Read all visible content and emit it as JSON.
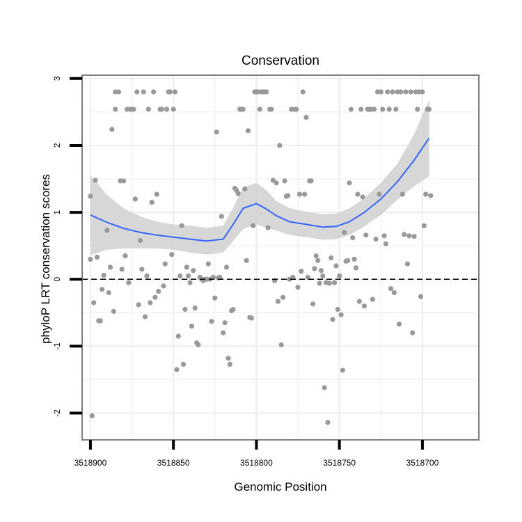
{
  "chart_data": {
    "type": "scatter",
    "title": "Conservation",
    "xlabel": "Genomic Position",
    "ylabel": "phyloP LRT conservation scores",
    "x_reversed": true,
    "xlim": [
      3518905,
      3518666
    ],
    "ylim": [
      -2.4,
      3.05
    ],
    "x_ticks": [
      3518900,
      3518850,
      3518800,
      3518750,
      3518700
    ],
    "x_tick_labels": [
      "3518900",
      "3518850",
      "3518800",
      "3518750",
      "3518700"
    ],
    "y_ticks": [
      -2,
      -1,
      0,
      1,
      2,
      3
    ],
    "y_tick_labels": [
      "-2",
      "-1",
      "0",
      "1",
      "2",
      "3"
    ],
    "reference_line": {
      "y": 0,
      "style": "dashed"
    },
    "grid": true,
    "colors": {
      "points": "#999999",
      "smooth_line": "#3366FF",
      "confidence_band": "#d3d3d3",
      "panel_border": "#7f7f7f",
      "grid": "#ececec"
    },
    "points": [
      {
        "x": 3518900,
        "y": 1.24
      },
      {
        "x": 3518900,
        "y": 0.3
      },
      {
        "x": 3518899,
        "y": -2.04
      },
      {
        "x": 3518898,
        "y": -0.35
      },
      {
        "x": 3518897,
        "y": 1.48
      },
      {
        "x": 3518896,
        "y": 0.33
      },
      {
        "x": 3518895,
        "y": -0.62
      },
      {
        "x": 3518894,
        "y": -0.62
      },
      {
        "x": 3518893,
        "y": -0.15
      },
      {
        "x": 3518892,
        "y": 0.06
      },
      {
        "x": 3518890,
        "y": 0.73
      },
      {
        "x": 3518889,
        "y": -0.2
      },
      {
        "x": 3518888,
        "y": 0.18
      },
      {
        "x": 3518887,
        "y": 2.24
      },
      {
        "x": 3518886,
        "y": -0.48
      },
      {
        "x": 3518885,
        "y": 2.8
      },
      {
        "x": 3518885,
        "y": 2.54
      },
      {
        "x": 3518883,
        "y": 2.8
      },
      {
        "x": 3518882,
        "y": 1.47
      },
      {
        "x": 3518881,
        "y": 0.15
      },
      {
        "x": 3518880,
        "y": 1.47
      },
      {
        "x": 3518879,
        "y": 0.35
      },
      {
        "x": 3518878,
        "y": 2.54
      },
      {
        "x": 3518877,
        "y": -0.05
      },
      {
        "x": 3518876,
        "y": 2.54
      },
      {
        "x": 3518875,
        "y": 2.54
      },
      {
        "x": 3518874,
        "y": 2.54
      },
      {
        "x": 3518873,
        "y": 1.2
      },
      {
        "x": 3518872,
        "y": 2.8
      },
      {
        "x": 3518871,
        "y": -0.38
      },
      {
        "x": 3518870,
        "y": 0.58
      },
      {
        "x": 3518869,
        "y": 0.15
      },
      {
        "x": 3518868,
        "y": 2.8
      },
      {
        "x": 3518867,
        "y": -0.56
      },
      {
        "x": 3518866,
        "y": 0.05
      },
      {
        "x": 3518865,
        "y": 2.54
      },
      {
        "x": 3518864,
        "y": -0.35
      },
      {
        "x": 3518863,
        "y": 1.15
      },
      {
        "x": 3518862,
        "y": 2.8
      },
      {
        "x": 3518861,
        "y": -0.27
      },
      {
        "x": 3518860,
        "y": 1.27
      },
      {
        "x": 3518859,
        "y": -0.18
      },
      {
        "x": 3518858,
        "y": 2.54
      },
      {
        "x": 3518857,
        "y": 2.54
      },
      {
        "x": 3518856,
        "y": -0.1
      },
      {
        "x": 3518855,
        "y": 0.23
      },
      {
        "x": 3518854,
        "y": 2.54
      },
      {
        "x": 3518853,
        "y": 2.8
      },
      {
        "x": 3518852,
        "y": 2.8
      },
      {
        "x": 3518851,
        "y": 0.37
      },
      {
        "x": 3518850,
        "y": 2.54
      },
      {
        "x": 3518849,
        "y": 2.8
      },
      {
        "x": 3518848,
        "y": -1.35
      },
      {
        "x": 3518847,
        "y": -0.85
      },
      {
        "x": 3518846,
        "y": 0.05
      },
      {
        "x": 3518845,
        "y": 0.8
      },
      {
        "x": 3518844,
        "y": -1.27
      },
      {
        "x": 3518843,
        "y": -0.45
      },
      {
        "x": 3518842,
        "y": 0.18
      },
      {
        "x": 3518841,
        "y": 0.05
      },
      {
        "x": 3518840,
        "y": -0.05
      },
      {
        "x": 3518839,
        "y": -0.7
      },
      {
        "x": 3518838,
        "y": 0.13
      },
      {
        "x": 3518837,
        "y": -0.43
      },
      {
        "x": 3518836,
        "y": -0.95
      },
      {
        "x": 3518835,
        "y": -0.98
      },
      {
        "x": 3518834,
        "y": 0.03
      },
      {
        "x": 3518833,
        "y": 0.0
      },
      {
        "x": 3518832,
        "y": -0.02
      },
      {
        "x": 3518831,
        "y": 0.0
      },
      {
        "x": 3518830,
        "y": 0.0
      },
      {
        "x": 3518829,
        "y": 0.23
      },
      {
        "x": 3518828,
        "y": 0.0
      },
      {
        "x": 3518827,
        "y": -0.63
      },
      {
        "x": 3518826,
        "y": 0.03
      },
      {
        "x": 3518825,
        "y": -0.28
      },
      {
        "x": 3518824,
        "y": 2.2
      },
      {
        "x": 3518823,
        "y": 0.02
      },
      {
        "x": 3518822,
        "y": 0.03
      },
      {
        "x": 3518821,
        "y": 0.94
      },
      {
        "x": 3518820,
        "y": -0.8
      },
      {
        "x": 3518819,
        "y": -0.65
      },
      {
        "x": 3518818,
        "y": 0.18
      },
      {
        "x": 3518817,
        "y": -1.18
      },
      {
        "x": 3518816,
        "y": -1.27
      },
      {
        "x": 3518815,
        "y": -0.47
      },
      {
        "x": 3518814,
        "y": -0.45
      },
      {
        "x": 3518813,
        "y": 1.36
      },
      {
        "x": 3518812,
        "y": 1.33
      },
      {
        "x": 3518811,
        "y": 1.28
      },
      {
        "x": 3518810,
        "y": 2.54
      },
      {
        "x": 3518809,
        "y": 2.54
      },
      {
        "x": 3518808,
        "y": 2.54
      },
      {
        "x": 3518807,
        "y": 1.35
      },
      {
        "x": 3518806,
        "y": 0.28
      },
      {
        "x": 3518805,
        "y": 2.22
      },
      {
        "x": 3518804,
        "y": -0.57
      },
      {
        "x": 3518803,
        "y": -0.58
      },
      {
        "x": 3518802,
        "y": 0.8
      },
      {
        "x": 3518801,
        "y": 2.8
      },
      {
        "x": 3518800,
        "y": 2.8
      },
      {
        "x": 3518799,
        "y": 2.8
      },
      {
        "x": 3518798,
        "y": 2.54
      },
      {
        "x": 3518797,
        "y": 2.8
      },
      {
        "x": 3518796,
        "y": 2.8
      },
      {
        "x": 3518795,
        "y": 2.8
      },
      {
        "x": 3518794,
        "y": 2.8
      },
      {
        "x": 3518793,
        "y": 0.77
      },
      {
        "x": 3518792,
        "y": 2.54
      },
      {
        "x": 3518791,
        "y": 2.54
      },
      {
        "x": 3518790,
        "y": 1.48
      },
      {
        "x": 3518789,
        "y": -0.02
      },
      {
        "x": 3518788,
        "y": 1.44
      },
      {
        "x": 3518787,
        "y": -0.33
      },
      {
        "x": 3518786,
        "y": 2.0
      },
      {
        "x": 3518785,
        "y": -0.98
      },
      {
        "x": 3518784,
        "y": -0.27
      },
      {
        "x": 3518783,
        "y": 1.47
      },
      {
        "x": 3518782,
        "y": 1.24
      },
      {
        "x": 3518781,
        "y": 1.25
      },
      {
        "x": 3518780,
        "y": 0.0
      },
      {
        "x": 3518779,
        "y": 2.54
      },
      {
        "x": 3518778,
        "y": 0.03
      },
      {
        "x": 3518777,
        "y": 2.54
      },
      {
        "x": 3518776,
        "y": 2.54
      },
      {
        "x": 3518775,
        "y": -0.12
      },
      {
        "x": 3518774,
        "y": 1.27
      },
      {
        "x": 3518773,
        "y": 0.12
      },
      {
        "x": 3518772,
        "y": 2.8
      },
      {
        "x": 3518771,
        "y": 1.27
      },
      {
        "x": 3518770,
        "y": 2.42
      },
      {
        "x": 3518769,
        "y": 0.03
      },
      {
        "x": 3518768,
        "y": 1.47
      },
      {
        "x": 3518767,
        "y": 1.47
      },
      {
        "x": 3518766,
        "y": -0.37
      },
      {
        "x": 3518765,
        "y": 0.16
      },
      {
        "x": 3518764,
        "y": 0.35
      },
      {
        "x": 3518763,
        "y": 0.28
      },
      {
        "x": 3518762,
        "y": -0.06
      },
      {
        "x": 3518761,
        "y": 0.13
      },
      {
        "x": 3518760,
        "y": 0.05
      },
      {
        "x": 3518759,
        "y": -1.62
      },
      {
        "x": 3518758,
        "y": -0.05
      },
      {
        "x": 3518757,
        "y": -2.14
      },
      {
        "x": 3518756,
        "y": -0.06
      },
      {
        "x": 3518755,
        "y": 0.32
      },
      {
        "x": 3518754,
        "y": -0.6
      },
      {
        "x": 3518753,
        "y": -0.05
      },
      {
        "x": 3518752,
        "y": 0.2
      },
      {
        "x": 3518751,
        "y": -0.45
      },
      {
        "x": 3518750,
        "y": 0.05
      },
      {
        "x": 3518749,
        "y": -0.53
      },
      {
        "x": 3518748,
        "y": -1.36
      },
      {
        "x": 3518747,
        "y": 0.7
      },
      {
        "x": 3518746,
        "y": 0.27
      },
      {
        "x": 3518745,
        "y": 0.28
      },
      {
        "x": 3518744,
        "y": 1.44
      },
      {
        "x": 3518743,
        "y": 2.54
      },
      {
        "x": 3518742,
        "y": 0.62
      },
      {
        "x": 3518741,
        "y": 0.3
      },
      {
        "x": 3518740,
        "y": 0.17
      },
      {
        "x": 3518739,
        "y": 1.27
      },
      {
        "x": 3518738,
        "y": -0.33
      },
      {
        "x": 3518737,
        "y": 2.54
      },
      {
        "x": 3518736,
        "y": 1.23
      },
      {
        "x": 3518735,
        "y": -0.4
      },
      {
        "x": 3518734,
        "y": 0.66
      },
      {
        "x": 3518733,
        "y": 2.54
      },
      {
        "x": 3518732,
        "y": 2.54
      },
      {
        "x": 3518731,
        "y": 2.54
      },
      {
        "x": 3518730,
        "y": -0.3
      },
      {
        "x": 3518729,
        "y": 2.54
      },
      {
        "x": 3518728,
        "y": 0.6
      },
      {
        "x": 3518727,
        "y": 2.8
      },
      {
        "x": 3518726,
        "y": 1.27
      },
      {
        "x": 3518725,
        "y": 2.8
      },
      {
        "x": 3518724,
        "y": 2.54
      },
      {
        "x": 3518723,
        "y": 0.65
      },
      {
        "x": 3518722,
        "y": 0.53
      },
      {
        "x": 3518721,
        "y": 2.8
      },
      {
        "x": 3518720,
        "y": 2.54
      },
      {
        "x": 3518719,
        "y": -0.14
      },
      {
        "x": 3518718,
        "y": 2.8
      },
      {
        "x": 3518717,
        "y": -0.2
      },
      {
        "x": 3518716,
        "y": 2.54
      },
      {
        "x": 3518715,
        "y": 2.8
      },
      {
        "x": 3518714,
        "y": -0.67
      },
      {
        "x": 3518713,
        "y": 2.8
      },
      {
        "x": 3518712,
        "y": 1.27
      },
      {
        "x": 3518711,
        "y": 0.67
      },
      {
        "x": 3518710,
        "y": 2.8
      },
      {
        "x": 3518709,
        "y": 0.23
      },
      {
        "x": 3518708,
        "y": 0.65
      },
      {
        "x": 3518707,
        "y": 2.8
      },
      {
        "x": 3518706,
        "y": -0.8
      },
      {
        "x": 3518705,
        "y": 0.64
      },
      {
        "x": 3518704,
        "y": 2.8
      },
      {
        "x": 3518703,
        "y": 2.54
      },
      {
        "x": 3518702,
        "y": 2.8
      },
      {
        "x": 3518701,
        "y": -0.26
      },
      {
        "x": 3518700,
        "y": 2.8
      },
      {
        "x": 3518699,
        "y": 0.8
      },
      {
        "x": 3518698,
        "y": 1.27
      },
      {
        "x": 3518697,
        "y": 2.54
      },
      {
        "x": 3518696,
        "y": 2.54
      },
      {
        "x": 3518695,
        "y": 1.25
      }
    ],
    "smooth_line": {
      "x": [
        3518900,
        3518890,
        3518880,
        3518870,
        3518860,
        3518850,
        3518840,
        3518830,
        3518820,
        3518814,
        3518808,
        3518800,
        3518794,
        3518788,
        3518780,
        3518770,
        3518760,
        3518752,
        3518744,
        3518735,
        3518725,
        3518715,
        3518705,
        3518696
      ],
      "y": [
        0.96,
        0.85,
        0.76,
        0.7,
        0.66,
        0.63,
        0.6,
        0.57,
        0.6,
        0.82,
        1.06,
        1.13,
        1.05,
        0.95,
        0.86,
        0.82,
        0.78,
        0.79,
        0.86,
        1.0,
        1.2,
        1.46,
        1.78,
        2.11
      ]
    },
    "confidence_band": {
      "x": [
        3518900,
        3518890,
        3518880,
        3518870,
        3518860,
        3518850,
        3518840,
        3518830,
        3518820,
        3518814,
        3518808,
        3518800,
        3518794,
        3518788,
        3518780,
        3518770,
        3518760,
        3518752,
        3518744,
        3518735,
        3518725,
        3518715,
        3518705,
        3518696
      ],
      "upper": [
        1.56,
        1.26,
        1.06,
        0.94,
        0.86,
        0.82,
        0.8,
        0.77,
        0.8,
        1.07,
        1.37,
        1.44,
        1.33,
        1.17,
        1.06,
        1.01,
        0.97,
        0.98,
        1.06,
        1.21,
        1.44,
        1.73,
        2.17,
        2.68
      ],
      "lower": [
        0.36,
        0.44,
        0.46,
        0.46,
        0.46,
        0.44,
        0.4,
        0.37,
        0.4,
        0.57,
        0.75,
        0.82,
        0.77,
        0.73,
        0.66,
        0.63,
        0.59,
        0.6,
        0.66,
        0.79,
        0.96,
        1.19,
        1.39,
        1.54
      ]
    }
  }
}
